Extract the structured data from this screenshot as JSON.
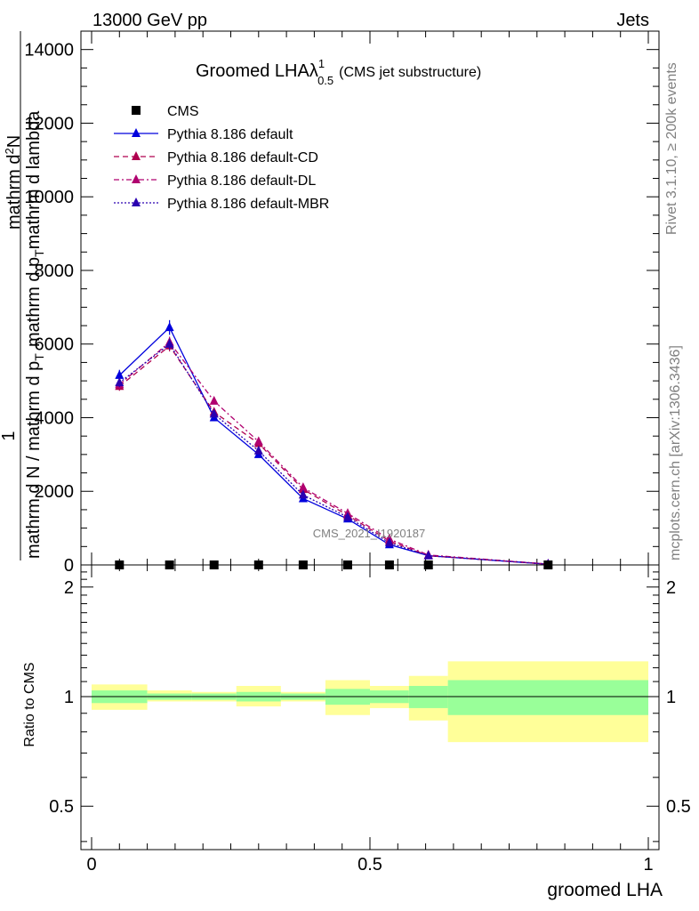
{
  "header": {
    "left": "13000 GeV pp",
    "right": "Jets"
  },
  "side_labels": {
    "rivet": "Rivet 3.1.10, ≥ 200k events",
    "mcplots": "mcplots.cern.ch [arXiv:1306.3436]"
  },
  "watermark": "CMS_2021_I1920187",
  "colors": {
    "default": "#0000dd",
    "cd": "#b0004f",
    "dl": "#b0006f",
    "mbr": "#2a00b0",
    "band_outer": "#ffff99",
    "band_inner": "#99ff99"
  },
  "chart_data": [
    {
      "type": "line",
      "title": "Groomed LHA",
      "title_symbol": "λ",
      "title_sup": "1",
      "title_sub": "0.5",
      "title_suffix": "(CMS jet substructure)",
      "ylabel_numerator_top": "1",
      "ylabel_numerator_bottom": "mathrm d N / mathrm d p",
      "ylabel_num_sub": "T",
      "ylabel_frac_numerator": "mathrm d",
      "ylabel_frac_numerator_sup": "2",
      "ylabel_frac_numerator_tail": "N",
      "ylabel_frac_denominator": "mathrm d p",
      "ylabel_frac_denominator_sub": "T",
      "ylabel_frac_denominator_tail": "mathrm d lambda",
      "xlim": [
        0,
        1
      ],
      "ylim": [
        0,
        14500
      ],
      "yticks": [
        0,
        2000,
        4000,
        6000,
        8000,
        10000,
        12000,
        14000
      ],
      "ytick_labels": [
        "0",
        "2000",
        "4000",
        "6000",
        "8000",
        "10000",
        "12000",
        "14000"
      ],
      "x": [
        0.05,
        0.14,
        0.22,
        0.3,
        0.38,
        0.46,
        0.535,
        0.605,
        0.82
      ],
      "cms": {
        "name": "CMS",
        "values": [
          0,
          0,
          0,
          0,
          0,
          0,
          0,
          0,
          0
        ]
      },
      "series": [
        {
          "name": "Pythia 8.186 default",
          "style": "solid",
          "color": "#0000dd",
          "values": [
            5150,
            6450,
            4000,
            3000,
            1800,
            1250,
            550,
            250,
            20
          ],
          "errors": [
            150,
            200,
            80,
            60,
            50,
            40,
            30,
            20,
            10
          ]
        },
        {
          "name": "Pythia 8.186 default-CD",
          "style": "dashed",
          "color": "#b0004f",
          "values": [
            4850,
            5950,
            4150,
            3300,
            2050,
            1350,
            650,
            250,
            20
          ],
          "errors": [
            120,
            150,
            80,
            70,
            50,
            40,
            30,
            20,
            10
          ]
        },
        {
          "name": "Pythia 8.186 default-DL",
          "style": "dashdot",
          "color": "#b0006f",
          "values": [
            4900,
            6050,
            4450,
            3350,
            2100,
            1400,
            700,
            270,
            25
          ],
          "errors": [
            120,
            150,
            80,
            70,
            50,
            40,
            30,
            20,
            10
          ]
        },
        {
          "name": "Pythia 8.186 default-MBR",
          "style": "dotted",
          "color": "#2a00b0",
          "values": [
            4950,
            6000,
            4100,
            3100,
            1900,
            1300,
            600,
            250,
            20
          ],
          "errors": [
            120,
            150,
            80,
            70,
            50,
            40,
            30,
            20,
            10
          ]
        }
      ]
    },
    {
      "type": "area",
      "title": "Ratio to CMS",
      "ylabel": "Ratio to CMS",
      "xlabel": "groomed LHA",
      "xlim": [
        0,
        1
      ],
      "ylim": [
        0.38,
        2.3
      ],
      "ytick_labels": [
        "0.5",
        "1",
        "2"
      ],
      "yticks": [
        0.5,
        1,
        2
      ],
      "xticks": [
        0,
        0.5,
        1
      ],
      "xtick_labels": [
        "0",
        "0.5",
        "1"
      ],
      "bin_edges": [
        0,
        0.1,
        0.18,
        0.26,
        0.34,
        0.42,
        0.5,
        0.57,
        0.64,
        1.0
      ],
      "inner_band": [
        [
          0.96,
          1.04
        ],
        [
          0.98,
          1.02
        ],
        [
          0.98,
          1.02
        ],
        [
          0.97,
          1.03
        ],
        [
          0.98,
          1.02
        ],
        [
          0.95,
          1.05
        ],
        [
          0.96,
          1.04
        ],
        [
          0.93,
          1.07
        ],
        [
          0.89,
          1.11
        ]
      ],
      "outer_band": [
        [
          0.92,
          1.08
        ],
        [
          0.97,
          1.04
        ],
        [
          0.97,
          1.03
        ],
        [
          0.94,
          1.07
        ],
        [
          0.97,
          1.03
        ],
        [
          0.89,
          1.11
        ],
        [
          0.93,
          1.07
        ],
        [
          0.86,
          1.14
        ],
        [
          0.75,
          1.25
        ]
      ]
    }
  ]
}
